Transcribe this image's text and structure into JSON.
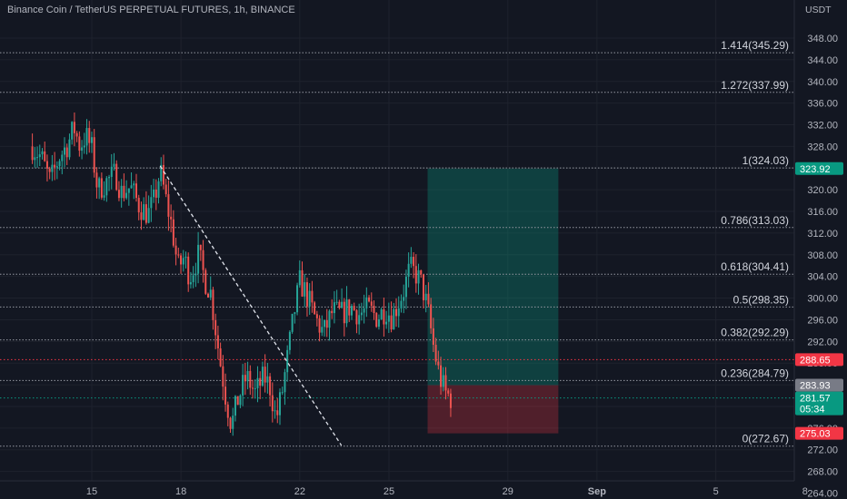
{
  "chart_data": {
    "type": "candlestick",
    "title": "Binance Coin / TetherUS PERPETUAL FUTURES, 1h, BINANCE",
    "currency": "USDT",
    "ylim": [
      264,
      350
    ],
    "y_ticks": [
      "348.00",
      "344.00",
      "340.00",
      "336.00",
      "332.00",
      "328.00",
      "324.00",
      "320.00",
      "316.00",
      "312.00",
      "308.00",
      "304.00",
      "300.00",
      "296.00",
      "292.00",
      "288.00",
      "284.00",
      "280.00",
      "276.00",
      "272.00",
      "268.00",
      "264.00"
    ],
    "x_ticks": [
      {
        "label": "15",
        "day": 15,
        "bold": false
      },
      {
        "label": "18",
        "day": 18,
        "bold": false
      },
      {
        "label": "22",
        "day": 22,
        "bold": false
      },
      {
        "label": "25",
        "day": 25,
        "bold": false
      },
      {
        "label": "29",
        "day": 29,
        "bold": false
      },
      {
        "label": "Sep",
        "day": 32,
        "bold": true
      },
      {
        "label": "5",
        "day": 36,
        "bold": false
      },
      {
        "label": "8",
        "day": 39,
        "bold": false
      }
    ],
    "fib_levels": [
      {
        "ratio": "1.414",
        "price": 345.29,
        "label": "1.414(345.29)"
      },
      {
        "ratio": "1.272",
        "price": 337.99,
        "label": "1.272(337.99)"
      },
      {
        "ratio": "1",
        "price": 324.03,
        "label": "1(324.03)"
      },
      {
        "ratio": "0.786",
        "price": 313.03,
        "label": "0.786(313.03)"
      },
      {
        "ratio": "0.618",
        "price": 304.41,
        "label": "0.618(304.41)"
      },
      {
        "ratio": "0.5",
        "price": 298.35,
        "label": "0.5(298.35)"
      },
      {
        "ratio": "0.382",
        "price": 292.29,
        "label": "0.382(292.29)"
      },
      {
        "ratio": "0.236",
        "price": 284.79,
        "label": "0.236(284.79)"
      },
      {
        "ratio": "0",
        "price": 272.67,
        "label": "0(272.67)"
      }
    ],
    "price_badges": [
      {
        "price": 323.92,
        "text": "323.92",
        "color": "#089981"
      },
      {
        "price": 288.65,
        "text": "288.65",
        "color": "#f23645"
      },
      {
        "price": 283.93,
        "text": "283.93",
        "color": "#787b86"
      },
      {
        "price": 281.57,
        "text": "281.57",
        "sub": "05:34",
        "color": "#089981"
      },
      {
        "price": 275.03,
        "text": "275.03",
        "color": "#f23645"
      }
    ],
    "position": {
      "entry": 283.93,
      "target": 323.92,
      "stop": 275.03,
      "start_day": 26.3,
      "end_day": 30.7
    },
    "trendline": {
      "from": {
        "day": 17.3,
        "price": 324.4
      },
      "to": {
        "day": 23.4,
        "price": 272.8
      }
    },
    "price_path": [
      {
        "day": 13.0,
        "price": 328.0
      },
      {
        "day": 13.3,
        "price": 326.0
      },
      {
        "day": 13.6,
        "price": 321.5
      },
      {
        "day": 13.9,
        "price": 326.0
      },
      {
        "day": 14.2,
        "price": 328.5
      },
      {
        "day": 14.4,
        "price": 331.5
      },
      {
        "day": 14.6,
        "price": 328.0
      },
      {
        "day": 14.8,
        "price": 330.0
      },
      {
        "day": 15.0,
        "price": 327.5
      },
      {
        "day": 15.2,
        "price": 320.0
      },
      {
        "day": 15.5,
        "price": 321.5
      },
      {
        "day": 15.8,
        "price": 323.0
      },
      {
        "day": 16.0,
        "price": 319.5
      },
      {
        "day": 16.3,
        "price": 320.5
      },
      {
        "day": 16.6,
        "price": 317.0
      },
      {
        "day": 16.9,
        "price": 315.5
      },
      {
        "day": 17.1,
        "price": 318.0
      },
      {
        "day": 17.3,
        "price": 323.5
      },
      {
        "day": 17.5,
        "price": 318.0
      },
      {
        "day": 17.7,
        "price": 313.0
      },
      {
        "day": 17.9,
        "price": 305.5
      },
      {
        "day": 18.1,
        "price": 307.5
      },
      {
        "day": 18.3,
        "price": 304.0
      },
      {
        "day": 18.6,
        "price": 308.0
      },
      {
        "day": 18.8,
        "price": 303.5
      },
      {
        "day": 19.0,
        "price": 301.0
      },
      {
        "day": 19.3,
        "price": 289.0
      },
      {
        "day": 19.5,
        "price": 282.0
      },
      {
        "day": 19.7,
        "price": 276.5
      },
      {
        "day": 19.9,
        "price": 281.0
      },
      {
        "day": 20.2,
        "price": 285.5
      },
      {
        "day": 20.5,
        "price": 282.5
      },
      {
        "day": 20.8,
        "price": 285.5
      },
      {
        "day": 21.0,
        "price": 283.5
      },
      {
        "day": 21.2,
        "price": 277.5
      },
      {
        "day": 21.4,
        "price": 282.5
      },
      {
        "day": 21.6,
        "price": 289.5
      },
      {
        "day": 21.8,
        "price": 297.0
      },
      {
        "day": 22.0,
        "price": 303.0
      },
      {
        "day": 22.2,
        "price": 301.0
      },
      {
        "day": 22.5,
        "price": 296.5
      },
      {
        "day": 22.8,
        "price": 293.5
      },
      {
        "day": 23.1,
        "price": 297.5
      },
      {
        "day": 23.4,
        "price": 297.0
      },
      {
        "day": 23.7,
        "price": 298.5
      },
      {
        "day": 24.0,
        "price": 297.0
      },
      {
        "day": 24.3,
        "price": 298.0
      },
      {
        "day": 24.6,
        "price": 296.5
      },
      {
        "day": 24.9,
        "price": 298.0
      },
      {
        "day": 25.1,
        "price": 296.5
      },
      {
        "day": 25.3,
        "price": 299.0
      },
      {
        "day": 25.5,
        "price": 301.5
      },
      {
        "day": 25.7,
        "price": 305.5
      },
      {
        "day": 25.9,
        "price": 304.5
      },
      {
        "day": 26.1,
        "price": 302.5
      },
      {
        "day": 26.3,
        "price": 298.0
      },
      {
        "day": 26.5,
        "price": 291.0
      },
      {
        "day": 26.7,
        "price": 285.5
      },
      {
        "day": 26.9,
        "price": 282.5
      },
      {
        "day": 27.1,
        "price": 281.5
      }
    ]
  }
}
